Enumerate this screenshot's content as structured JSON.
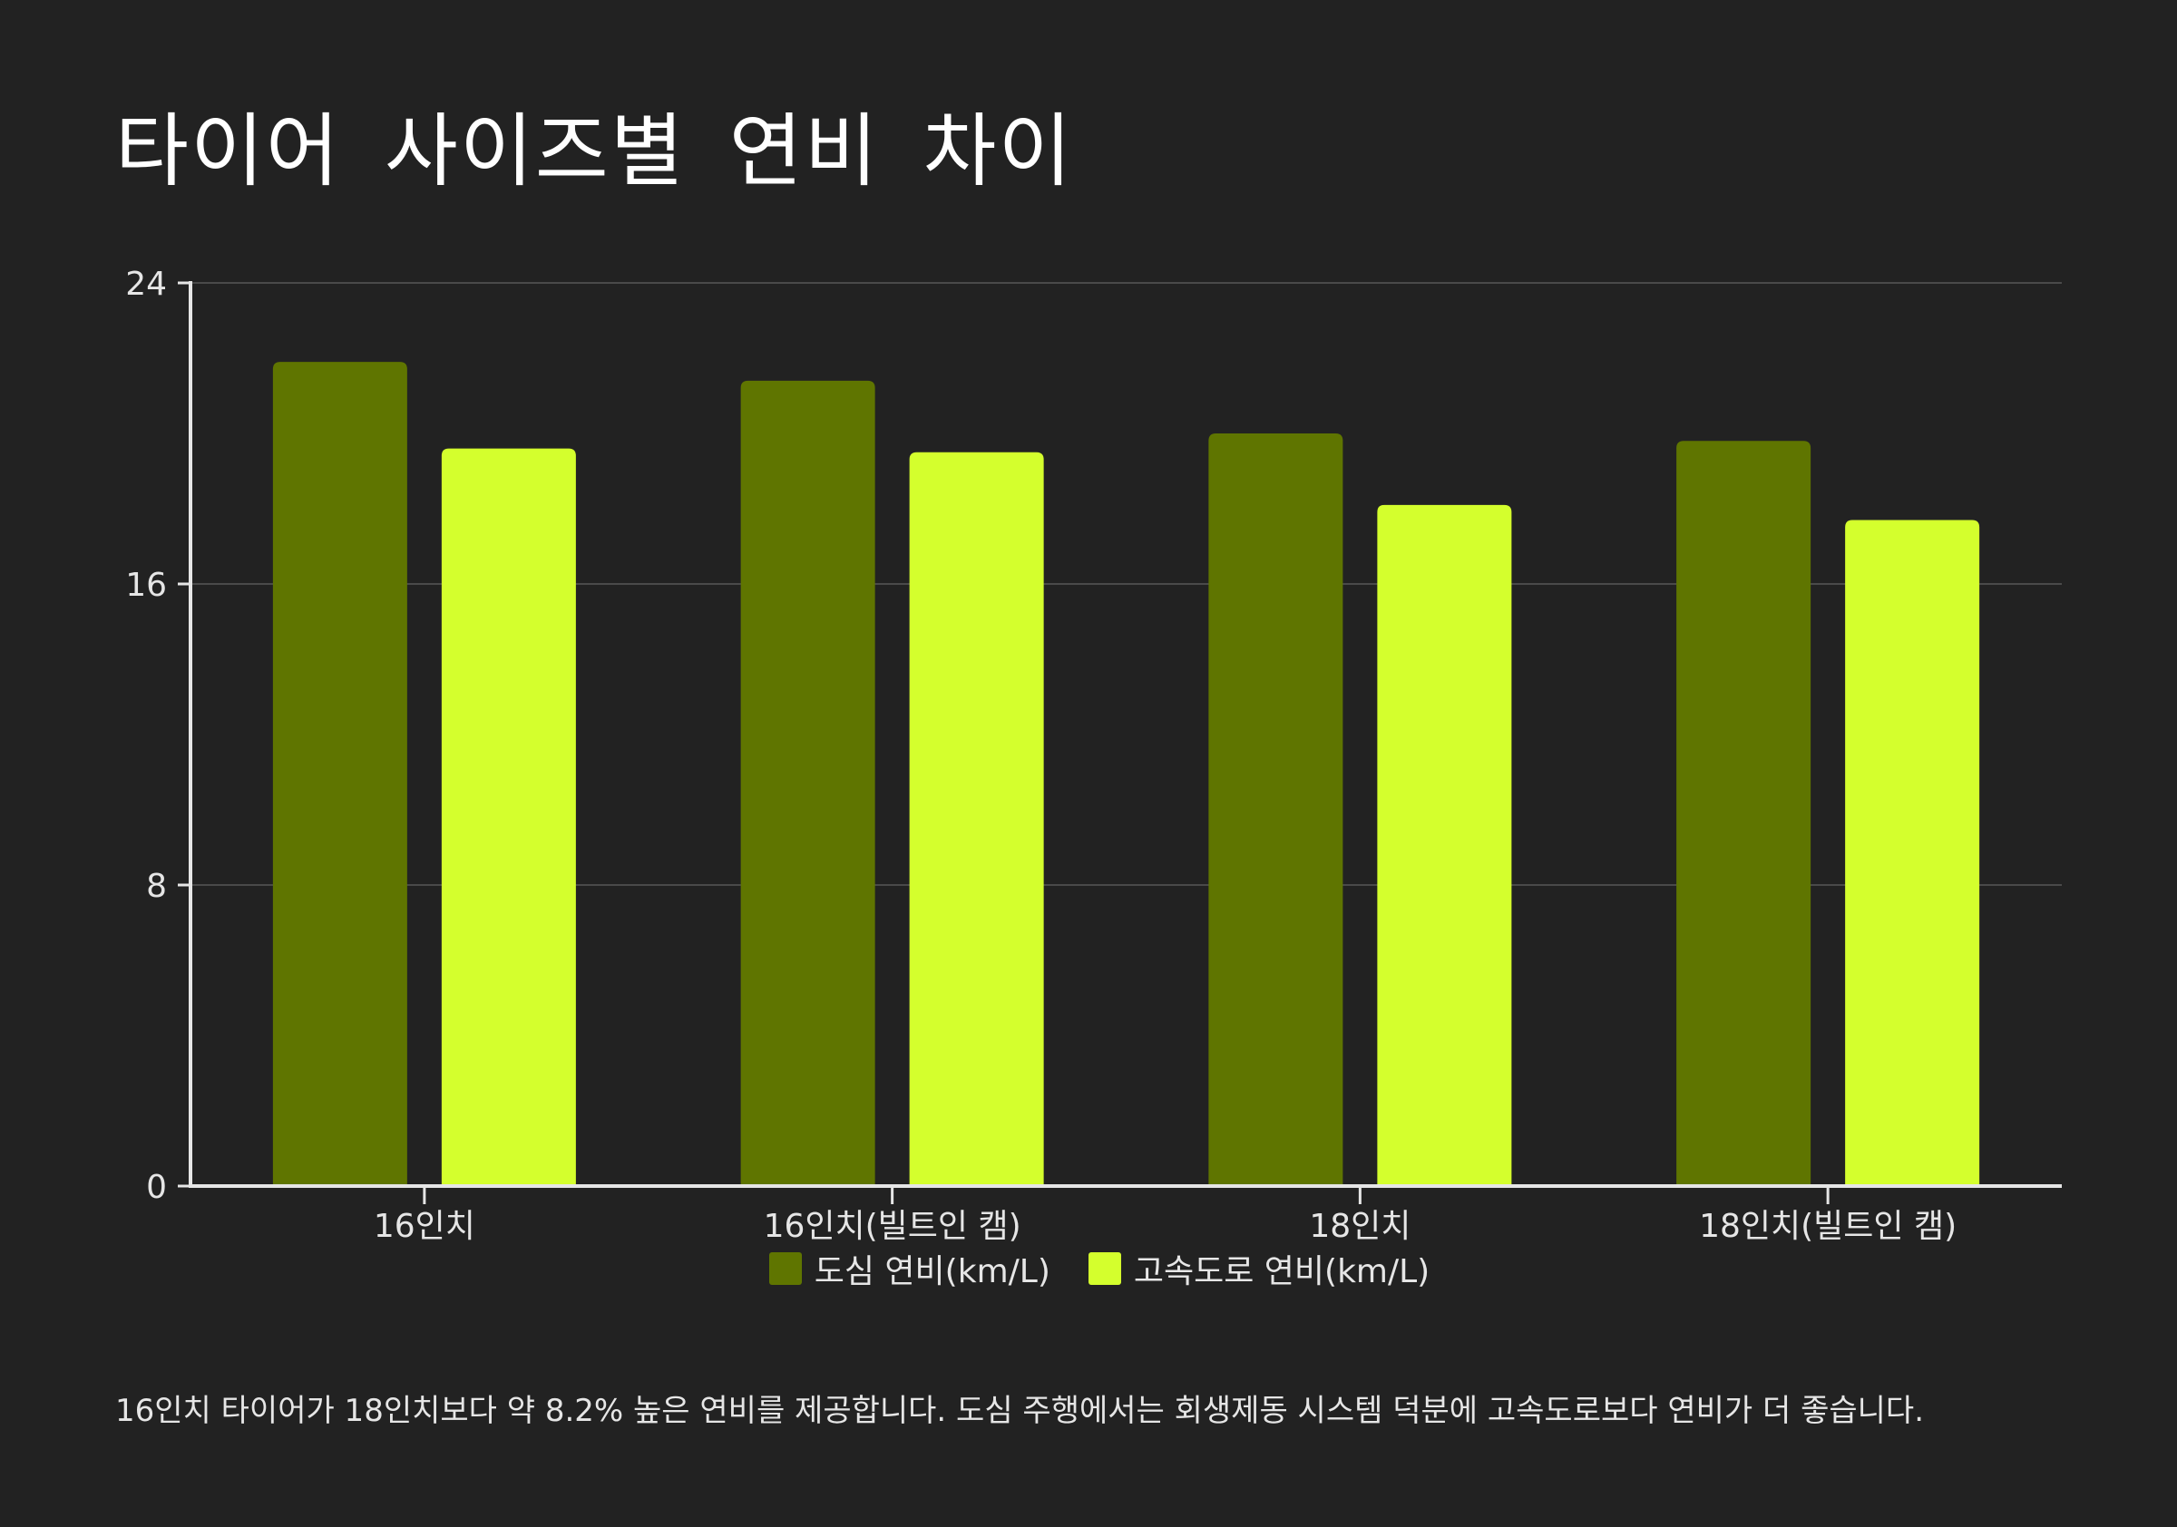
{
  "chart_data": {
    "type": "bar",
    "title": "타이어 사이즈별 연비 차이",
    "categories": [
      "16인치",
      "16인치(빌트인 캠)",
      "18인치",
      "18인치(빌트인 캠)"
    ],
    "series": [
      {
        "name": "도심 연비(km/L)",
        "values": [
          21.9,
          21.4,
          20.0,
          19.8
        ],
        "color": "#5f7500"
      },
      {
        "name": "고속도로 연비(km/L)",
        "values": [
          19.6,
          19.5,
          18.1,
          17.7
        ],
        "color": "#d4ff2d"
      }
    ],
    "ylim": [
      0,
      24
    ],
    "yticks": [
      0,
      8,
      16,
      24
    ],
    "grid": true,
    "legend_position": "bottom"
  },
  "footnote": "16인치 타이어가 18인치보다 약 8.2% 높은 연비를 제공합니다. 도심 주행에서는 회생제동 시스템 덕분에 고속도로보다 연비가 더 좋습니다."
}
